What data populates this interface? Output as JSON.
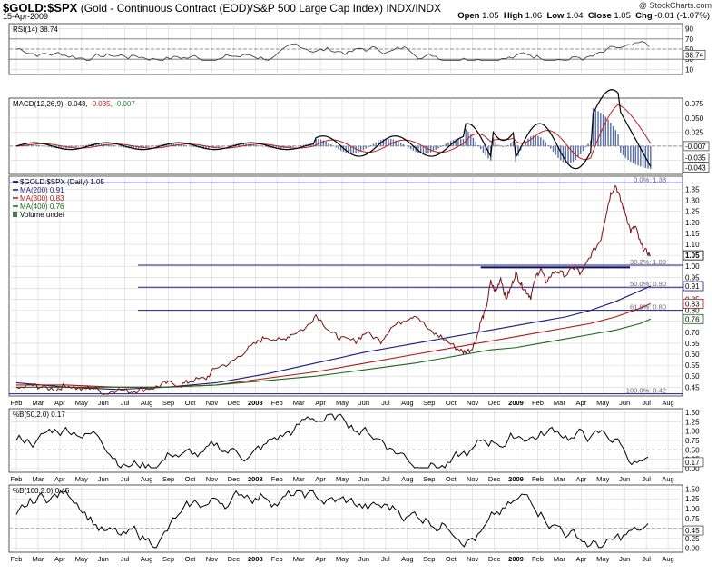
{
  "header": {
    "symbol": "$GOLD:$SPX",
    "description": "(Gold - Continuous Contract (EOD)/S&P 500 Large Cap Index)",
    "exchange": "INDX/INDX",
    "date": "15-Apr-2009",
    "open_label": "Open",
    "open": "1.05",
    "high_label": "High",
    "high": "1.06",
    "low_label": "Low",
    "low": "1.04",
    "close_label": "Close",
    "close": "1.05",
    "chg_label": "Chg",
    "chg": "-0.01 (-1.07%)",
    "watermark": "@ StockCharts.com"
  },
  "colors": {
    "price": "#7a1010",
    "ma200": "#1a1a80",
    "ma300": "#b01818",
    "ma400": "#1a6a1a",
    "macd_signal": "#c02020",
    "histogram": "#5a6ea8",
    "grid": "#d6d6d6",
    "level_line": "#1a1a90"
  },
  "chart_data": [
    {
      "type": "line",
      "panel": "rsi",
      "legend": "RSI(14) 38.74",
      "ylim": [
        0,
        100
      ],
      "yticks": [
        "90",
        "70",
        "50",
        "30",
        "10"
      ],
      "tick_values": [
        90,
        70,
        50,
        30,
        10
      ],
      "reference_lines": [
        70,
        50,
        30
      ],
      "last_value": "38.74"
    },
    {
      "type": "line",
      "panel": "macd",
      "legend": {
        "label": "MACD(12,26,9)",
        "macd": "-0.043",
        "signal": "-0.035",
        "histogram": "-0.007"
      },
      "ylim": [
        -0.05,
        0.085
      ],
      "yticks": [
        "0.075",
        "0.050",
        "0.025",
        "0.000",
        "-0.025"
      ],
      "tick_values": [
        0.075,
        0.05,
        0.025,
        0.0,
        -0.025
      ],
      "value_tags": [
        "-0.007",
        "-0.035",
        "-0.043"
      ]
    },
    {
      "type": "line",
      "panel": "price",
      "legend": [
        {
          "key": "price",
          "text": "$GOLD:$SPX (Daily) 1.05"
        },
        {
          "key": "ma200",
          "text": "MA(200) 0.91"
        },
        {
          "key": "ma300",
          "text": "MA(300) 0.83"
        },
        {
          "key": "ma400",
          "text": "MA(400) 0.76"
        },
        {
          "key": "volume",
          "text": "Volume undef"
        }
      ],
      "ylim": [
        0.41,
        1.41
      ],
      "yticks": [
        "1.35",
        "1.30",
        "1.25",
        "1.20",
        "1.15",
        "1.10",
        "1.05",
        "1.00",
        "0.95",
        "0.90",
        "0.85",
        "0.80",
        "0.75",
        "0.70",
        "0.65",
        "0.60",
        "0.55",
        "0.50",
        "0.45"
      ],
      "tick_values": [
        1.35,
        1.3,
        1.25,
        1.2,
        1.15,
        1.1,
        1.05,
        1.0,
        0.95,
        0.9,
        0.85,
        0.8,
        0.75,
        0.7,
        0.65,
        0.6,
        0.55,
        0.5,
        0.45
      ],
      "fib_levels": [
        {
          "label": "0.0%: 1.38",
          "value": 1.38
        },
        {
          "label": "38.2%: 1.00",
          "value": 1.005
        },
        {
          "label": "50.0%: 0.90",
          "value": 0.905
        },
        {
          "label": "61.8%: 0.80",
          "value": 0.8
        },
        {
          "label": "100.0%: 0.42",
          "value": 0.42
        }
      ],
      "value_tags": [
        {
          "text": "1.05",
          "value": 1.05,
          "key": "price"
        },
        {
          "text": "0.91",
          "value": 0.91,
          "key": "ma200"
        },
        {
          "text": "0.83",
          "value": 0.83,
          "key": "ma300"
        },
        {
          "text": "0.76",
          "value": 0.76,
          "key": "ma400"
        }
      ],
      "series": [
        {
          "key": "price",
          "x": [
            0,
            3,
            5,
            8,
            10,
            13,
            15,
            18,
            20,
            23,
            25,
            28,
            30,
            33,
            35,
            38,
            40,
            43,
            45,
            48,
            50,
            53,
            55,
            58,
            60,
            63,
            65,
            68,
            70,
            73,
            75,
            78,
            80,
            83,
            85,
            88,
            89.5,
            91,
            92,
            93,
            94,
            95,
            96,
            97,
            98,
            99,
            100,
            101,
            102,
            103,
            104,
            105,
            106,
            108,
            110,
            112,
            113,
            115,
            117,
            118,
            119,
            120,
            121,
            122,
            123,
            124,
            125,
            126,
            127
          ],
          "values": [
            0.44,
            0.46,
            0.45,
            0.44,
            0.46,
            0.44,
            0.45,
            0.42,
            0.44,
            0.43,
            0.44,
            0.45,
            0.47,
            0.46,
            0.48,
            0.49,
            0.54,
            0.56,
            0.6,
            0.65,
            0.68,
            0.66,
            0.69,
            0.72,
            0.78,
            0.7,
            0.67,
            0.66,
            0.7,
            0.66,
            0.72,
            0.76,
            0.78,
            0.7,
            0.68,
            0.63,
            0.61,
            0.62,
            0.66,
            0.75,
            0.8,
            0.93,
            0.88,
            0.95,
            0.85,
            0.9,
            0.97,
            0.92,
            0.89,
            0.86,
            0.95,
            0.99,
            0.93,
            0.98,
            0.96,
            1.0,
            0.96,
            1.05,
            1.12,
            1.23,
            1.33,
            1.37,
            1.3,
            1.24,
            1.16,
            1.18,
            1.1,
            1.07,
            1.05
          ]
        },
        {
          "key": "ma200",
          "x": [
            0,
            10,
            20,
            30,
            40,
            50,
            60,
            70,
            80,
            85,
            90,
            95,
            100,
            105,
            110,
            115,
            120,
            125,
            127
          ],
          "values": [
            0.47,
            0.45,
            0.44,
            0.45,
            0.47,
            0.51,
            0.56,
            0.61,
            0.65,
            0.67,
            0.69,
            0.71,
            0.73,
            0.75,
            0.77,
            0.8,
            0.84,
            0.89,
            0.91
          ]
        },
        {
          "key": "ma300",
          "x": [
            0,
            10,
            20,
            30,
            40,
            50,
            60,
            70,
            80,
            85,
            90,
            95,
            100,
            105,
            110,
            115,
            120,
            125,
            127
          ],
          "values": [
            0.46,
            0.46,
            0.45,
            0.45,
            0.46,
            0.49,
            0.52,
            0.56,
            0.6,
            0.62,
            0.64,
            0.66,
            0.68,
            0.7,
            0.72,
            0.74,
            0.77,
            0.81,
            0.83
          ]
        },
        {
          "key": "ma400",
          "x": [
            0,
            10,
            20,
            30,
            40,
            50,
            60,
            70,
            80,
            85,
            90,
            95,
            100,
            105,
            110,
            115,
            120,
            125,
            127
          ],
          "values": [
            0.45,
            0.45,
            0.45,
            0.45,
            0.46,
            0.48,
            0.5,
            0.53,
            0.56,
            0.58,
            0.6,
            0.62,
            0.63,
            0.65,
            0.67,
            0.69,
            0.71,
            0.74,
            0.76
          ]
        }
      ]
    },
    {
      "type": "line",
      "panel": "pctb50",
      "legend": "%B(50,2.0) 0.17",
      "ylim": [
        -0.1,
        1.6
      ],
      "yticks": [
        "1.50",
        "1.25",
        "1.00",
        "0.75",
        "0.50",
        "0.25",
        "0.00"
      ],
      "tick_values": [
        1.5,
        1.25,
        1.0,
        0.75,
        0.5,
        0.25,
        0.0
      ],
      "reference_lines": [
        0.5
      ],
      "last_value": "0.17"
    },
    {
      "type": "line",
      "panel": "pctb100",
      "legend": "%B(100,2.0) 0.45",
      "ylim": [
        -0.1,
        1.6
      ],
      "yticks": [
        "1.50",
        "1.25",
        "1.00",
        "0.75",
        "0.50",
        "0.25",
        "0.00"
      ],
      "tick_values": [
        1.5,
        1.25,
        1.0,
        0.75,
        0.5,
        0.25,
        0.0
      ],
      "reference_lines": [
        0.5
      ],
      "last_value": "0.45"
    }
  ],
  "x_axis": {
    "labels": [
      "Feb",
      "Mar",
      "Apr",
      "May",
      "Jun",
      "Jul",
      "Aug",
      "Sep",
      "Oct",
      "Nov",
      "Dec",
      "2008",
      "Feb",
      "Mar",
      "Apr",
      "May",
      "Jun",
      "Jul",
      "Aug",
      "Sep",
      "Oct",
      "Nov",
      "Dec",
      "2009",
      "Feb",
      "Mar",
      "Apr",
      "May",
      "Jun",
      "Jul",
      "Aug"
    ],
    "bold": [
      "2008",
      "2009"
    ]
  }
}
